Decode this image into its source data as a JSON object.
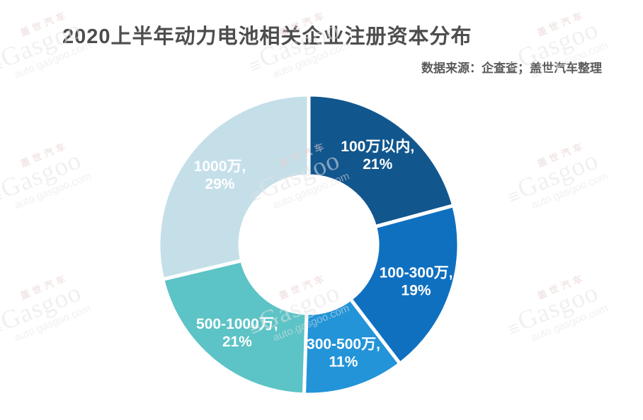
{
  "header": {
    "title": "2020上半年动力电池相关企业注册资本分布",
    "source": "数据来源：企查查；盖世汽车整理"
  },
  "chart_data": {
    "type": "pie",
    "subtype": "donut",
    "title": "2020上半年动力电池相关企业注册资本分布",
    "source": "数据来源：企查查；盖世汽车整理",
    "categories": [
      "100万以内",
      "100-300万",
      "300-500万",
      "500-1000万",
      "1000万"
    ],
    "values": [
      21,
      19,
      11,
      21,
      29
    ],
    "unit": "%",
    "colors": [
      "#12568E",
      "#0F70C0",
      "#2394D8",
      "#5CC3C6",
      "#C5DFE9"
    ],
    "label_format": "{category}, {value}%",
    "label_color": "#FFFFFF",
    "start_angle_deg": 0,
    "direction": "clockwise",
    "legend": "none",
    "slice_gap_color": "#FFFFFF"
  },
  "watermark": {
    "brand": "Gasgoo",
    "brand_cn": "盖世汽车",
    "url": "auto.gasgoo.com",
    "logo_icon": "triple-bar-icon"
  }
}
